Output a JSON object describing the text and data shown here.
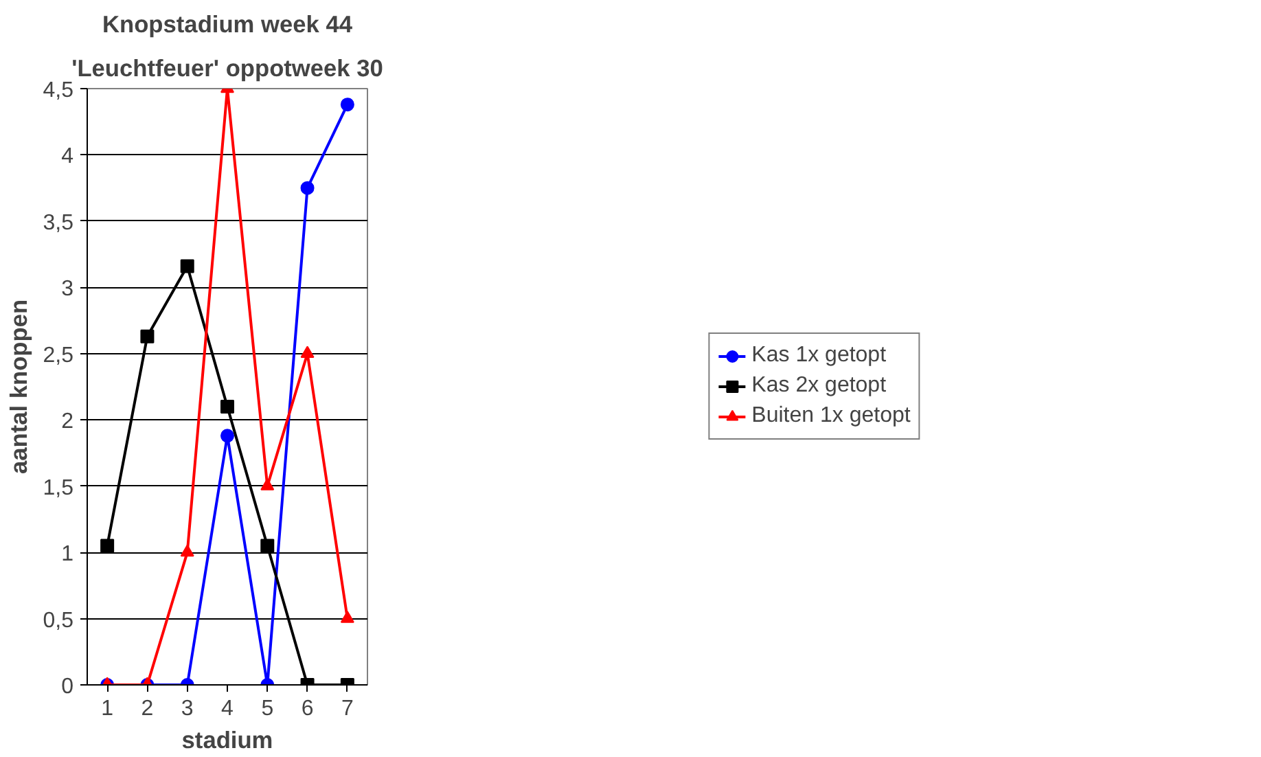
{
  "chart_data": {
    "type": "line",
    "title": "Knopstadium week 44",
    "subtitle": "'Leuchtfeuer' oppotweek 30",
    "xlabel": "stadium",
    "ylabel": "aantal knoppen",
    "categories": [
      "1",
      "2",
      "3",
      "4",
      "5",
      "6",
      "7"
    ],
    "series": [
      {
        "name": "Kas 1x getopt",
        "color": "#0000ff",
        "marker": "circle",
        "values": [
          0,
          0,
          0,
          1.88,
          0,
          3.75,
          4.38
        ]
      },
      {
        "name": "Kas 2x getopt",
        "color": "#000000",
        "marker": "square",
        "values": [
          1.05,
          2.63,
          3.16,
          2.1,
          1.05,
          0,
          0
        ]
      },
      {
        "name": "Buiten 1x getopt",
        "color": "#ff0000",
        "marker": "triangle",
        "values": [
          0,
          0,
          1,
          4.5,
          1.5,
          2.5,
          0.5
        ]
      }
    ],
    "ylim": [
      0,
      4.5
    ],
    "yticks": [
      0,
      {
        "value": 0.5,
        "label": "0,5"
      },
      1,
      {
        "value": 1.5,
        "label": "1,5"
      },
      2,
      {
        "value": 2.5,
        "label": "2,5"
      },
      3,
      {
        "value": 3.5,
        "label": "3,5"
      },
      4,
      {
        "value": 4.5,
        "label": "4,5"
      }
    ],
    "grid": "y",
    "legend": "right",
    "line_style": "solid"
  }
}
